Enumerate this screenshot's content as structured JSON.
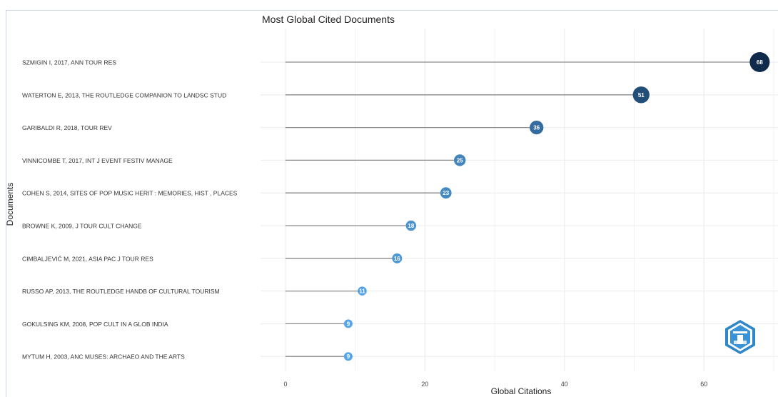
{
  "chart_data": {
    "type": "lollipop",
    "title": "Most Global Cited Documents",
    "xlabel": "Global Citations",
    "ylabel": "Documents",
    "xlim": [
      0,
      70
    ],
    "xticks": [
      "0",
      "20",
      "40",
      "60"
    ],
    "categories": [
      "SZMIGIN I, 2017, ANN TOUR RES",
      "WATERTON E, 2013, THE ROUTLEDGE COMPANION TO LANDSC STUD",
      "GARIBALDI R, 2018, TOUR REV",
      "VINNICOMBE T, 2017, INT J EVENT FESTIV MANAGE",
      "COHEN S, 2014, SITES OF POP MUSIC HERIT : MEMORIES, HIST , PLACES",
      "BROWNE K, 2009, J TOUR CULT CHANGE",
      "CIMBALJEVIĆ M, 2021, ASIA PAC J TOUR RES",
      "RUSSO AP, 2013, THE ROUTLEDGE HANDB OF CULTURAL TOURISM",
      "GOKULSING KM, 2008, POP CULT IN A GLOB INDIA",
      "MYTUM H, 2003, ANC MUSES: ARCHAEO AND THE ARTS"
    ],
    "values": [
      68,
      51,
      36,
      25,
      23,
      18,
      16,
      11,
      9,
      9
    ],
    "value_labels": [
      "68",
      "51",
      "36",
      "25",
      "23",
      "18",
      "16",
      "11",
      "9",
      "9"
    ],
    "grid": true,
    "colors": {
      "low": "#56a6e8",
      "high": "#0f2a4a",
      "stem": "#8a8a8a",
      "grid": "#ececec"
    }
  }
}
